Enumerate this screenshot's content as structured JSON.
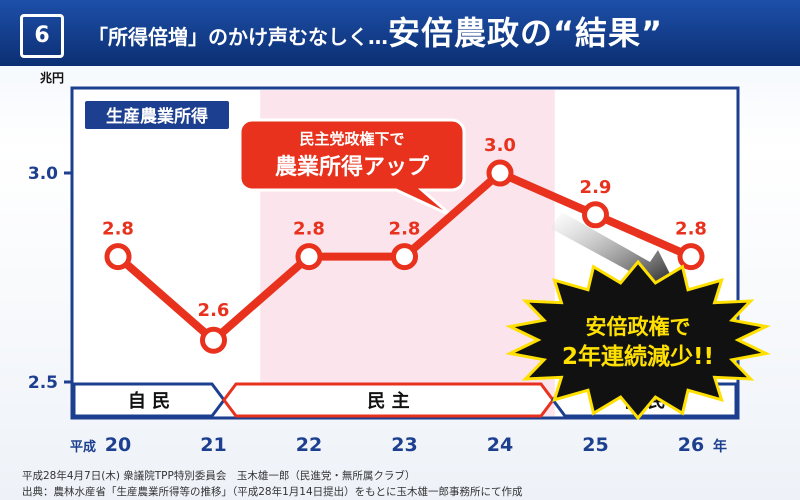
{
  "header": {
    "slide_number": "6",
    "title_part1": "「所得倍増」のかけ声むなしく…",
    "title_part2": "安倍農政の“結果”"
  },
  "chart_data": {
    "type": "line",
    "title": "生産農業所得",
    "yunit": "兆円",
    "xunit": "年",
    "x_prefix": "平成",
    "categories": [
      "20",
      "21",
      "22",
      "23",
      "24",
      "25",
      "26"
    ],
    "values": [
      2.8,
      2.6,
      2.8,
      2.8,
      3.0,
      2.9,
      2.8
    ],
    "value_labels": [
      "2.8",
      "2.6",
      "2.8",
      "2.8",
      "3.0",
      "2.9",
      "2.8"
    ],
    "ylim": [
      2.5,
      3.1
    ],
    "yticks": [
      "3.0",
      "2.5"
    ],
    "periods": [
      {
        "label": "自 民",
        "from": "20",
        "to": "21"
      },
      {
        "label": "民 主",
        "from": "22",
        "to": "24"
      },
      {
        "label": "自 民",
        "from": "25",
        "to": "26"
      }
    ],
    "shaded_period": {
      "from": "22",
      "to": "24"
    },
    "annotations": {
      "dpj_line1": "民主党政権下で",
      "dpj_line2": "農業所得アップ",
      "abe_line1": "安倍政権で",
      "abe_line2": "2年連続減少!!"
    },
    "colors": {
      "line": "#e8321e",
      "shade": "#fbe4ec",
      "navy": "#1d3f8f",
      "gold": "#ffe000"
    }
  },
  "footnotes": {
    "line1": "平成28年4月7日(木) 衆議院TPP特別委員会　玉木雄一郎（民進党・無所属クラブ）",
    "line2": "出典：農林水産省「生産農業所得等の推移」（平成28年1月14日提出）をもとに玉木雄一郎事務所にて作成"
  }
}
